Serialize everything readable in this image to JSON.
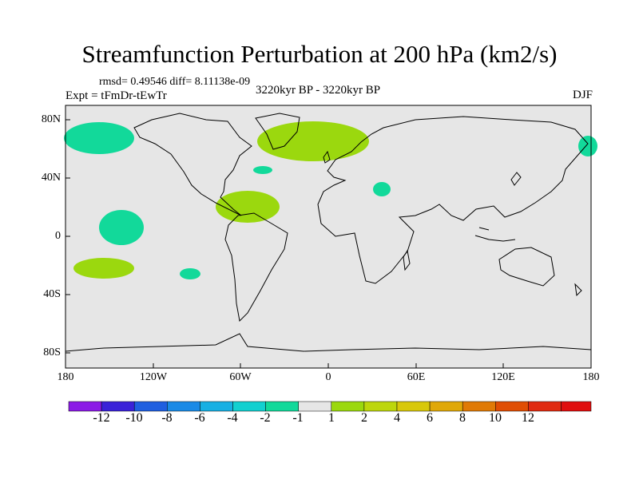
{
  "title": "Streamfunction Perturbation at 200 hPa (km2/s)",
  "stats_line": "rmsd= 0.49546 diff= 8.11138e-09",
  "experiment": "Expt = tFmDr-tEwTr",
  "period": "3220kyr BP - 3220kyr BP",
  "season": "DJF",
  "map": {
    "background_color": "#e6e6e6",
    "lat_labels": [
      "80N",
      "40N",
      "0",
      "40S",
      "80S"
    ],
    "lon_labels": [
      "180",
      "120W",
      "60W",
      "0",
      "60E",
      "120E",
      "180"
    ]
  },
  "anomaly_regions": [
    {
      "name": "north-pacific-negative",
      "sign": "negative",
      "color": "#12d99a"
    },
    {
      "name": "greenland-north-atlantic-positive",
      "sign": "positive",
      "color": "#9bd80e"
    },
    {
      "name": "mid-atlantic-small-negative",
      "sign": "negative",
      "color": "#12d99a"
    },
    {
      "name": "east-mediterranean-negative",
      "sign": "negative",
      "color": "#12d99a"
    },
    {
      "name": "caribbean-atlantic-positive",
      "sign": "positive",
      "color": "#9bd80e"
    },
    {
      "name": "tropical-pacific-negative",
      "sign": "negative",
      "color": "#12d99a"
    },
    {
      "name": "south-pacific-positive",
      "sign": "positive",
      "color": "#9bd80e"
    },
    {
      "name": "south-east-pacific-negative",
      "sign": "negative",
      "color": "#12d99a"
    },
    {
      "name": "east-asia-edge-negative",
      "sign": "negative",
      "color": "#12d99a"
    }
  ],
  "colorbar": {
    "colors": [
      "#8b1ae6",
      "#3a22d8",
      "#1f5fe0",
      "#1a8ae6",
      "#18b0e3",
      "#12d0d0",
      "#12d99a",
      "#e6e6e6",
      "#9bd80e",
      "#bdd60c",
      "#d8c80a",
      "#e0a808",
      "#e07a06",
      "#e04e04",
      "#e02a10",
      "#e00e0e"
    ],
    "labels": [
      "-12",
      "-10",
      "-8",
      "-6",
      "-4",
      "-2",
      "-1",
      "1",
      "2",
      "4",
      "6",
      "8",
      "10",
      "12"
    ]
  }
}
